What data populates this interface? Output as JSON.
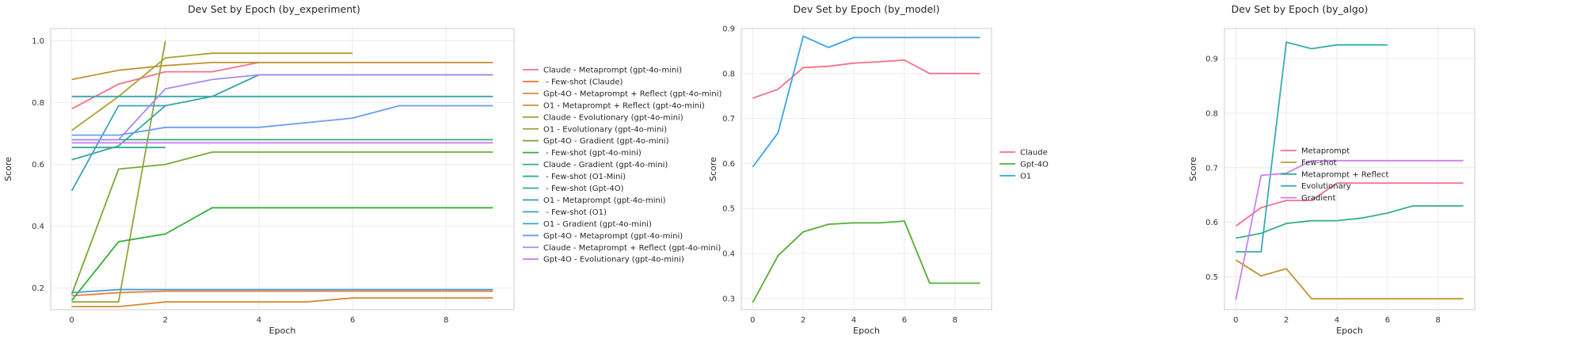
{
  "chart_data": [
    {
      "type": "line",
      "title": "Dev Set by Epoch (by_experiment)",
      "xlabel": "Epoch",
      "ylabel": "Score",
      "xlim": [
        -0.45,
        9.45
      ],
      "ylim": [
        0.13,
        1.04
      ],
      "xticks": [
        0,
        2,
        4,
        6,
        8
      ],
      "yticks": [
        0.2,
        0.4,
        0.6,
        0.8,
        1.0
      ],
      "ytick_labels": [
        "0.2",
        "0.4",
        "0.6",
        "0.8",
        "1.0"
      ],
      "grid": true,
      "legend_position": "right-outside",
      "series": [
        {
          "name": "Claude - Metaprompt (gpt-4o-mini)",
          "color": "#f77189",
          "x": [
            0,
            1,
            2,
            3,
            4,
            5,
            6,
            7,
            8,
            9
          ],
          "y": [
            0.78,
            0.86,
            0.9,
            0.9,
            0.93,
            0.93,
            0.93,
            0.93,
            0.93,
            0.93
          ]
        },
        {
          "name": " - Few-shot (Claude)",
          "color": "#f37932",
          "x": [
            0,
            1,
            2,
            3,
            4,
            5,
            6,
            7,
            8,
            9
          ],
          "y": [
            0.175,
            0.185,
            0.19,
            0.19,
            0.19,
            0.19,
            0.19,
            0.19,
            0.19,
            0.19
          ]
        },
        {
          "name": "Gpt-4O - Metaprompt + Reflect (gpt-4o-mini)",
          "color": "#dc8932",
          "x": [
            0,
            1,
            2,
            3,
            4,
            5,
            6,
            7,
            8,
            9
          ],
          "y": [
            0.14,
            0.14,
            0.155,
            0.155,
            0.155,
            0.155,
            0.168,
            0.168,
            0.168,
            0.168
          ]
        },
        {
          "name": "O1 - Metaprompt + Reflect (gpt-4o-mini)",
          "color": "#c39532",
          "x": [
            0,
            1,
            2,
            3,
            4,
            5,
            6,
            7,
            8,
            9
          ],
          "y": [
            0.875,
            0.905,
            0.92,
            0.93,
            0.93,
            0.93,
            0.93,
            0.93,
            0.93,
            0.93
          ]
        },
        {
          "name": "Claude - Evolutionary (gpt-4o-mini)",
          "color": "#ae9d31",
          "x": [
            0,
            1,
            2,
            3,
            4,
            5,
            6
          ],
          "y": [
            0.71,
            0.82,
            0.945,
            0.96,
            0.96,
            0.96,
            0.96
          ]
        },
        {
          "name": "O1 - Evolutionary (gpt-4o-mini)",
          "color": "#97a431",
          "x": [
            0,
            1,
            2
          ],
          "y": [
            0.155,
            0.155,
            1.0
          ]
        },
        {
          "name": "Gpt-4O - Gradient (gpt-4o-mini)",
          "color": "#77ab31",
          "x": [
            0,
            1,
            2,
            3,
            4,
            5,
            6,
            7,
            8,
            9
          ],
          "y": [
            0.18,
            0.585,
            0.6,
            0.64,
            0.64,
            0.64,
            0.64,
            0.64,
            0.64,
            0.64
          ]
        },
        {
          "name": " - Few-shot (gpt-4o-mini)",
          "color": "#33b039",
          "x": [
            0,
            1,
            2,
            3,
            4,
            5,
            6,
            7,
            8,
            9
          ],
          "y": [
            0.16,
            0.35,
            0.375,
            0.46,
            0.46,
            0.46,
            0.46,
            0.46,
            0.46,
            0.46
          ]
        },
        {
          "name": "Claude - Gradient (gpt-4o-mini)",
          "color": "#35ac7a",
          "x": [
            0,
            1,
            2,
            3,
            4,
            5,
            6,
            7,
            8,
            9
          ],
          "y": [
            0.68,
            0.68,
            0.68,
            0.68,
            0.68,
            0.68,
            0.68,
            0.68,
            0.68,
            0.68
          ]
        },
        {
          "name": " - Few-shot (O1-Mini)",
          "color": "#36aa8f",
          "x": [
            0,
            1,
            2
          ],
          "y": [
            0.655,
            0.655,
            0.655
          ]
        },
        {
          "name": " - Few-shot (Gpt-4O)",
          "color": "#37a7a0",
          "x": [
            0,
            1,
            2,
            3,
            4,
            5,
            6,
            7,
            8,
            9
          ],
          "y": [
            0.615,
            0.66,
            0.79,
            0.82,
            0.89,
            0.89,
            0.89,
            0.89,
            0.89,
            0.89
          ]
        },
        {
          "name": "O1 - Metaprompt (gpt-4o-mini)",
          "color": "#38a5af",
          "x": [
            0,
            1,
            2,
            3,
            4,
            5,
            6,
            7,
            8,
            9
          ],
          "y": [
            0.82,
            0.82,
            0.82,
            0.82,
            0.82,
            0.82,
            0.82,
            0.82,
            0.82,
            0.82
          ]
        },
        {
          "name": " - Few-shot (O1)",
          "color": "#3aa2c1",
          "x": [
            0,
            1,
            2
          ],
          "y": [
            0.515,
            0.79,
            0.79
          ]
        },
        {
          "name": "O1 - Gradient (gpt-4o-mini)",
          "color": "#3d9fd8",
          "x": [
            0,
            1,
            2,
            3,
            4,
            5,
            6,
            7,
            8,
            9
          ],
          "y": [
            0.185,
            0.195,
            0.195,
            0.195,
            0.195,
            0.195,
            0.195,
            0.195,
            0.195,
            0.195
          ]
        },
        {
          "name": "Gpt-4O - Metaprompt (gpt-4o-mini)",
          "color": "#6e9bf4",
          "x": [
            0,
            1,
            2,
            3,
            4,
            5,
            6,
            7,
            8,
            9
          ],
          "y": [
            0.695,
            0.695,
            0.72,
            0.72,
            0.72,
            0.735,
            0.75,
            0.79,
            0.79,
            0.79
          ]
        },
        {
          "name": "Claude - Metaprompt + Reflect (gpt-4o-mini)",
          "color": "#a48cf4",
          "x": [
            0,
            1,
            2,
            3,
            4,
            5,
            6,
            7,
            8,
            9
          ],
          "y": [
            0.68,
            0.68,
            0.845,
            0.875,
            0.89,
            0.89,
            0.89,
            0.89,
            0.89,
            0.89
          ]
        },
        {
          "name": "Gpt-4O - Evolutionary (gpt-4o-mini)",
          "color": "#cc7af4",
          "x": [
            0,
            1,
            2,
            3,
            4,
            5,
            6,
            7,
            8,
            9
          ],
          "y": [
            0.67,
            0.67,
            0.67,
            0.67,
            0.67,
            0.67,
            0.67,
            0.67,
            0.67,
            0.67
          ]
        }
      ]
    },
    {
      "type": "line",
      "title": "Dev Set by Epoch (by_model)",
      "xlabel": "Epoch",
      "ylabel": "Score",
      "xlim": [
        -0.45,
        9.45
      ],
      "ylim": [
        0.275,
        0.9
      ],
      "xticks": [
        0,
        2,
        4,
        6,
        8
      ],
      "yticks": [
        0.3,
        0.4,
        0.5,
        0.6,
        0.7,
        0.8,
        0.9
      ],
      "ytick_labels": [
        "0.3",
        "0.4",
        "0.5",
        "0.6",
        "0.7",
        "0.8",
        "0.9"
      ],
      "grid": true,
      "legend_position": "right-outside",
      "series": [
        {
          "name": "Claude",
          "color": "#f77189",
          "x": [
            0,
            1,
            2,
            3,
            4,
            5,
            6,
            7,
            8,
            9
          ],
          "y": [
            0.745,
            0.765,
            0.813,
            0.816,
            0.823,
            0.826,
            0.83,
            0.8,
            0.8,
            0.8
          ]
        },
        {
          "name": "Gpt-4O",
          "color": "#50b131",
          "x": [
            0,
            1,
            2,
            3,
            4,
            5,
            6,
            7,
            8,
            9
          ],
          "y": [
            0.291,
            0.395,
            0.448,
            0.465,
            0.468,
            0.468,
            0.472,
            0.334,
            0.334,
            0.334
          ]
        },
        {
          "name": "O1",
          "color": "#3ba3ec",
          "x": [
            0,
            1,
            2,
            3,
            4,
            5,
            6,
            7,
            8,
            9
          ],
          "y": [
            0.592,
            0.668,
            0.883,
            0.858,
            0.88,
            0.88,
            0.88,
            0.88,
            0.88,
            0.88
          ]
        }
      ]
    },
    {
      "type": "line",
      "title": "Dev Set by Epoch (by_algo)",
      "xlabel": "Epoch",
      "ylabel": "Score",
      "xlim": [
        -0.45,
        9.45
      ],
      "ylim": [
        0.44,
        0.955
      ],
      "xticks": [
        0,
        2,
        4,
        6,
        8
      ],
      "yticks": [
        0.5,
        0.6,
        0.7,
        0.8,
        0.9
      ],
      "ytick_labels": [
        "0.5",
        "0.6",
        "0.7",
        "0.8",
        "0.9"
      ],
      "grid": true,
      "legend_position": "right-outside",
      "series": [
        {
          "name": "Metaprompt",
          "color": "#f77189",
          "x": [
            0,
            1,
            2,
            3,
            4,
            5,
            6,
            7,
            8,
            9
          ],
          "y": [
            0.593,
            0.627,
            0.64,
            0.64,
            0.672,
            0.672,
            0.672,
            0.672,
            0.672,
            0.672
          ]
        },
        {
          "name": "Few-shot",
          "color": "#bb9832",
          "x": [
            0,
            1,
            2,
            3,
            4,
            5,
            6,
            7,
            8,
            9
          ],
          "y": [
            0.531,
            0.502,
            0.515,
            0.46,
            0.46,
            0.46,
            0.46,
            0.46,
            0.46,
            0.46
          ]
        },
        {
          "name": "Metaprompt + Reflect",
          "color": "#34ae91",
          "x": [
            0,
            1,
            2,
            3,
            4,
            5,
            6,
            7,
            8,
            9
          ],
          "y": [
            0.571,
            0.58,
            0.598,
            0.603,
            0.603,
            0.608,
            0.617,
            0.63,
            0.63,
            0.63
          ]
        },
        {
          "name": "Evolutionary",
          "color": "#37abb5",
          "x": [
            0,
            1,
            2,
            3,
            4,
            5,
            6
          ],
          "y": [
            0.546,
            0.546,
            0.93,
            0.918,
            0.925,
            0.925,
            0.925
          ]
        },
        {
          "name": "Gradient",
          "color": "#cd7ff4",
          "x": [
            0,
            1,
            2,
            3,
            4,
            5,
            6,
            7,
            8,
            9
          ],
          "y": [
            0.458,
            0.686,
            0.69,
            0.713,
            0.713,
            0.713,
            0.713,
            0.713,
            0.713,
            0.713
          ]
        }
      ]
    }
  ]
}
